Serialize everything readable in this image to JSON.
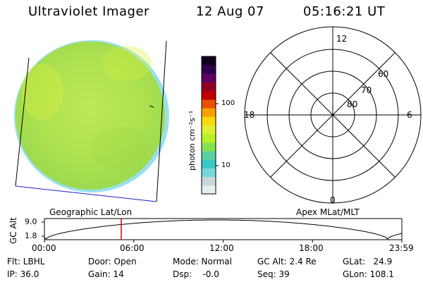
{
  "header": {
    "instrument": "Ultraviolet Imager",
    "date": "12 Aug 07",
    "time": "05:16:21 UT"
  },
  "colorbar": {
    "unit_label": "photon cm⁻²s⁻¹",
    "tick_100": "100",
    "tick_10": "10",
    "scale": "log",
    "colors": [
      "#e8eef0",
      "#c8d8d8",
      "#78d8d8",
      "#38c8c8",
      "#58d0a0",
      "#88e050",
      "#b8f028",
      "#e0f030",
      "#f8d810",
      "#f8a000",
      "#e85000",
      "#c00000",
      "#900020",
      "#600060",
      "#300050",
      "#100020"
    ]
  },
  "polar": {
    "mlt_labels": {
      "top": "12",
      "right": "6",
      "bottom": "0",
      "left": "18"
    },
    "lat_labels": [
      "60",
      "70",
      "80"
    ]
  },
  "labels": {
    "left_grid": "Geographic Lat/Lon",
    "right_grid": "Apex MLat/MLT"
  },
  "altitude_plot": {
    "ylabel": "GC Alt",
    "ytick_top": "9.0",
    "ytick_bottom": "1.8",
    "xticks": [
      "00:00",
      "06:00",
      "12:00",
      "18:00",
      "23:59"
    ],
    "marker_time": "05:16"
  },
  "footer": {
    "filter": "Flt: LBHL",
    "ip": "IP: 36.0",
    "door": "Door: Open",
    "gain": "Gain: 14",
    "mode": "Mode: Normal",
    "dsp": "Dsp:    -0.0",
    "gc_alt": "GC Alt: 2.4 Re",
    "seq": "Seq: 39",
    "glat": "GLat:   24.9",
    "glon": "GLon: 108.1"
  },
  "colors": {
    "disk_main": "#b8e84a",
    "disk_dark": "#88d040",
    "disk_edge": "#60c8e0",
    "marker": "#d00000",
    "limb_line": "#2020c0"
  }
}
